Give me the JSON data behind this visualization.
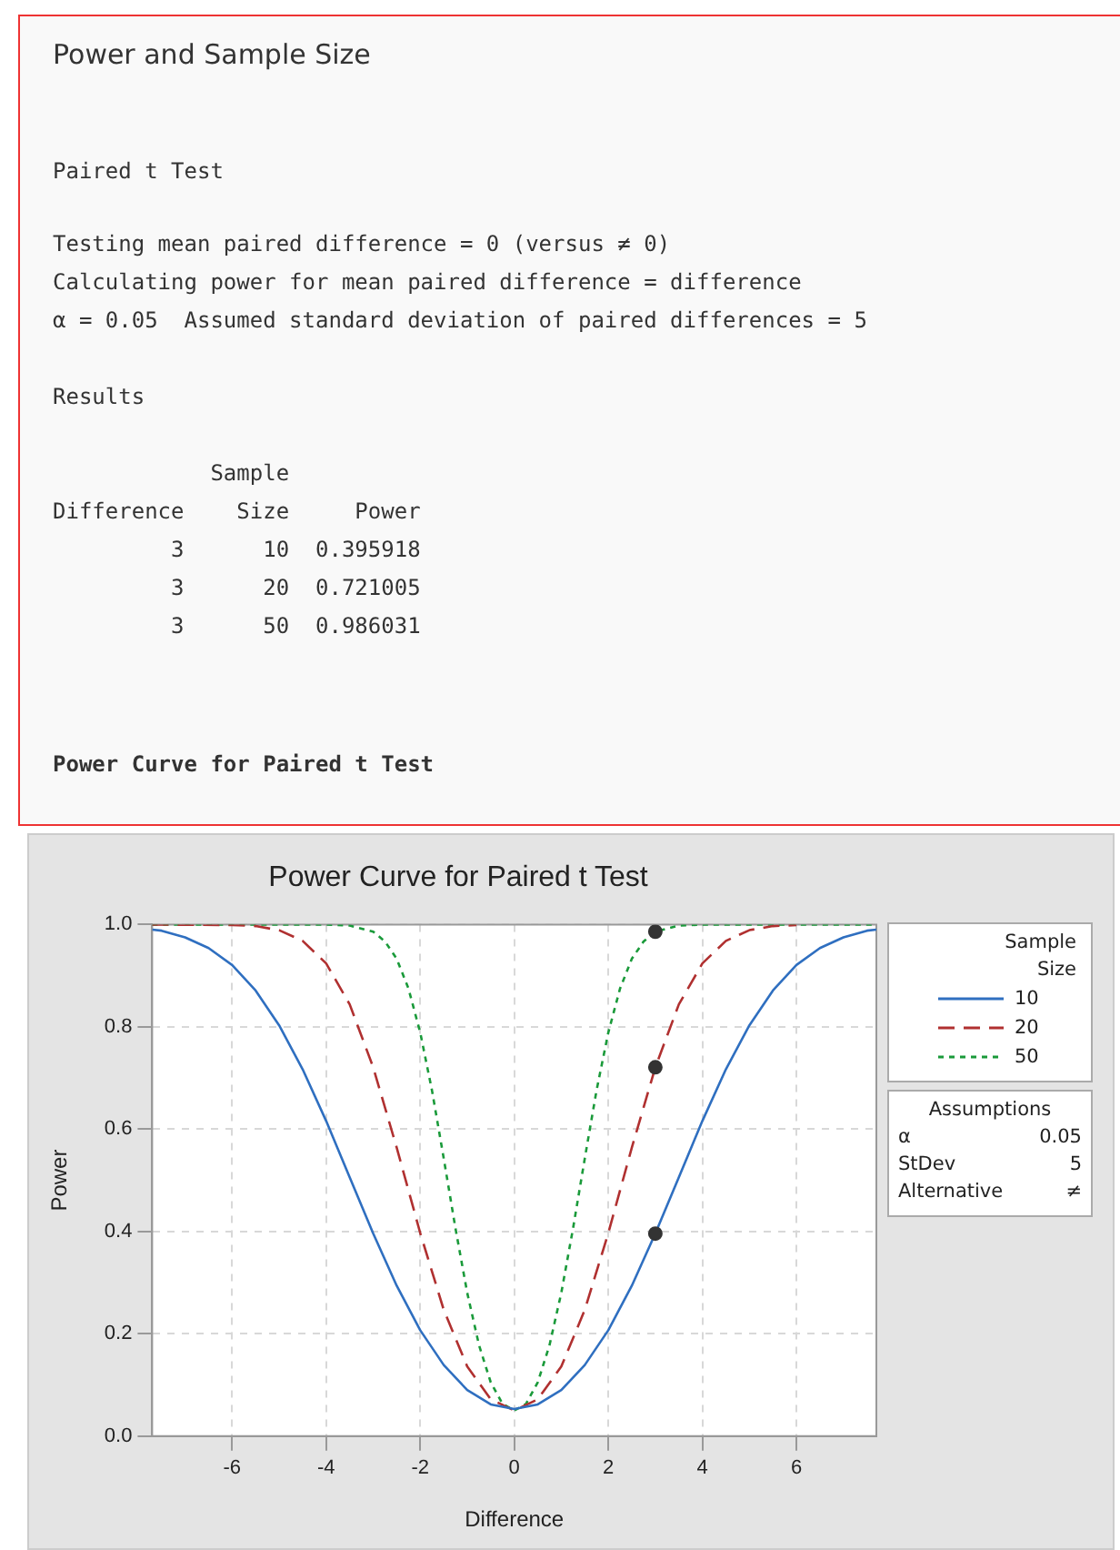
{
  "chart_data": {
    "type": "line",
    "title": "Power Curve for Paired t Test",
    "xlabel": "Difference",
    "ylabel": "Power",
    "legend_title": "Sample Size",
    "xlim": [
      -7.7,
      7.7
    ],
    "xticks": [
      -6,
      -4,
      -2,
      0,
      2,
      4,
      6
    ],
    "ylim": [
      0,
      1
    ],
    "yticks": [
      {
        "value": 0,
        "label": "0.0"
      },
      {
        "value": 0.2,
        "label": "0.2"
      },
      {
        "value": 0.4,
        "label": "0.4"
      },
      {
        "value": 0.6,
        "label": "0.6"
      },
      {
        "value": 0.8,
        "label": "0.8"
      },
      {
        "value": 1,
        "label": "1.0"
      }
    ],
    "grid": true,
    "legend": "top right",
    "marker": "none",
    "series": [
      {
        "name": "10",
        "color": "#2f6fc0",
        "line_style": "solid",
        "x": [
          -7.7,
          -7.5,
          -7,
          -6.5,
          -6,
          -5.5,
          -5,
          -4.5,
          -4,
          -3.5,
          -3,
          -2.5,
          -2,
          -1.5,
          -1,
          -0.5,
          0,
          0.5,
          1,
          1.5,
          2,
          2.5,
          3,
          3.5,
          4,
          4.5,
          5,
          5.5,
          6,
          6.5,
          7,
          7.5,
          7.7
        ],
        "values": [
          0.99,
          0.988,
          0.975,
          0.954,
          0.921,
          0.871,
          0.803,
          0.717,
          0.616,
          0.506,
          0.396,
          0.294,
          0.207,
          0.139,
          0.09,
          0.062,
          0.053,
          0.062,
          0.09,
          0.139,
          0.207,
          0.294,
          0.396,
          0.506,
          0.616,
          0.717,
          0.803,
          0.871,
          0.921,
          0.954,
          0.975,
          0.988,
          0.99
        ]
      },
      {
        "name": "20",
        "color": "#b03030",
        "line_style": "dashed",
        "x": [
          -7.7,
          -6,
          -5.5,
          -5,
          -4.5,
          -4,
          -3.5,
          -3,
          -2.5,
          -2,
          -1.5,
          -1,
          -0.5,
          0,
          0.5,
          1,
          1.5,
          2,
          2.5,
          3,
          3.5,
          4,
          4.5,
          5,
          5.5,
          6
        ],
        "values": [
          1,
          0.999,
          0.997,
          0.989,
          0.968,
          0.924,
          0.844,
          0.721,
          0.564,
          0.397,
          0.247,
          0.136,
          0.072,
          0.05,
          0.072,
          0.136,
          0.247,
          0.397,
          0.564,
          0.721,
          0.844,
          0.924,
          0.968,
          0.989,
          0.997,
          0.999
        ]
      },
      {
        "name": "50",
        "color": "#1a9a3a",
        "line_style": "dotted",
        "x": [
          -7.7,
          -4,
          -3.5,
          -3,
          -2.75,
          -2.5,
          -2.25,
          -2,
          -1.75,
          -1.5,
          -1.25,
          -1,
          -0.75,
          -0.5,
          -0.25,
          0,
          0.25,
          0.5,
          0.75,
          1,
          1.25,
          1.5,
          1.75,
          2,
          2.25,
          2.5,
          2.75,
          3,
          3.5,
          4,
          7.7
        ],
        "values": [
          1,
          1,
          0.998,
          0.986,
          0.967,
          0.933,
          0.875,
          0.789,
          0.676,
          0.543,
          0.406,
          0.28,
          0.178,
          0.105,
          0.063,
          0.05,
          0.063,
          0.105,
          0.178,
          0.28,
          0.406,
          0.543,
          0.676,
          0.789,
          0.875,
          0.933,
          0.967,
          0.986,
          0.998,
          1,
          1
        ]
      },
      {
        "type": "scatter",
        "color": "#333333",
        "marker": "circle",
        "x": [
          3,
          3,
          3
        ],
        "values": [
          0.395918,
          0.721005,
          0.986031
        ]
      }
    ],
    "annotations": [
      "Power and Sample Size",
      "Paired t Test",
      "Testing mean paired difference = 0 (versus ≠ 0)",
      "Calculating power for mean paired difference = difference",
      "α = 0.05  Assumed standard deviation of paired differences = 5",
      "Results",
      "            Sample",
      "Difference    Size     Power",
      "         3      10  0.395918",
      "         3      20  0.721005",
      "         3      50  0.986031",
      "Power Curve for Paired t Test",
      "Assumptions",
      "α",
      "0.05",
      "StDev",
      "5",
      "Alternative",
      "≠"
    ]
  }
}
